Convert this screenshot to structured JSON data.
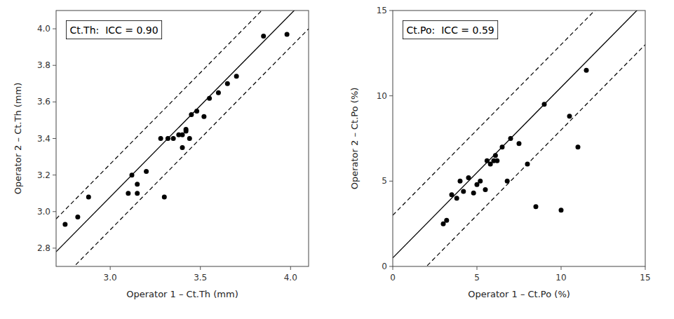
{
  "chart_data": [
    {
      "type": "scatter",
      "x": [
        2.75,
        2.82,
        2.88,
        3.1,
        3.12,
        3.15,
        3.15,
        3.2,
        3.28,
        3.3,
        3.32,
        3.35,
        3.38,
        3.4,
        3.4,
        3.42,
        3.42,
        3.44,
        3.45,
        3.48,
        3.52,
        3.55,
        3.6,
        3.65,
        3.7,
        3.85,
        3.98
      ],
      "values": [
        2.93,
        2.97,
        3.08,
        3.1,
        3.2,
        3.1,
        3.15,
        3.22,
        3.4,
        3.08,
        3.4,
        3.4,
        3.42,
        3.42,
        3.35,
        3.44,
        3.45,
        3.4,
        3.53,
        3.55,
        3.52,
        3.62,
        3.65,
        3.7,
        3.74,
        3.96,
        3.97
      ],
      "color": "#000000",
      "xlim": [
        2.7,
        4.1
      ],
      "ylim": [
        2.7,
        4.1
      ],
      "xticks": [
        {
          "value": 3.0,
          "label": "3.0"
        },
        3.5,
        {
          "value": 4.0,
          "label": "4.0"
        }
      ],
      "yticks": [
        2.8,
        {
          "value": 3.0,
          "label": "3.0"
        },
        3.2,
        3.4,
        3.6,
        3.8,
        {
          "value": 4.0,
          "label": "4.0"
        }
      ],
      "x_label": "Operator 1 – Ct.Th (mm)",
      "y_label": "Operator 2 – Ct.Th (mm)",
      "annotation": "Ct.Th:  ICC = 0.90",
      "line_intercept": 0.08,
      "band_offset": 0.18
    },
    {
      "type": "scatter",
      "x": [
        3.0,
        3.2,
        3.5,
        3.8,
        4.0,
        4.2,
        4.5,
        4.8,
        5.0,
        5.2,
        5.5,
        5.6,
        5.8,
        6.0,
        6.1,
        6.2,
        6.5,
        6.8,
        7.0,
        7.5,
        8.0,
        8.5,
        9.0,
        10.0,
        10.5,
        11.0,
        11.5
      ],
      "values": [
        2.5,
        2.7,
        4.2,
        4.0,
        5.0,
        4.4,
        5.2,
        4.3,
        4.8,
        5.0,
        4.5,
        6.2,
        6.0,
        6.2,
        6.5,
        6.2,
        7.0,
        5.0,
        7.5,
        7.2,
        6.0,
        3.5,
        9.5,
        3.3,
        8.8,
        7.0,
        11.5
      ],
      "color": "#000000",
      "xlim": [
        0,
        15
      ],
      "ylim": [
        0,
        15
      ],
      "xticks": [
        0,
        5,
        10,
        15
      ],
      "yticks": [
        0,
        5,
        10,
        15
      ],
      "x_label": "Operator 1 – Ct.Po (%)",
      "y_label": "Operator 2 – Ct.Po (%)",
      "annotation": "Ct.Po:  ICC = 0.59",
      "line_intercept": 0.5,
      "band_offset": 2.5
    }
  ]
}
